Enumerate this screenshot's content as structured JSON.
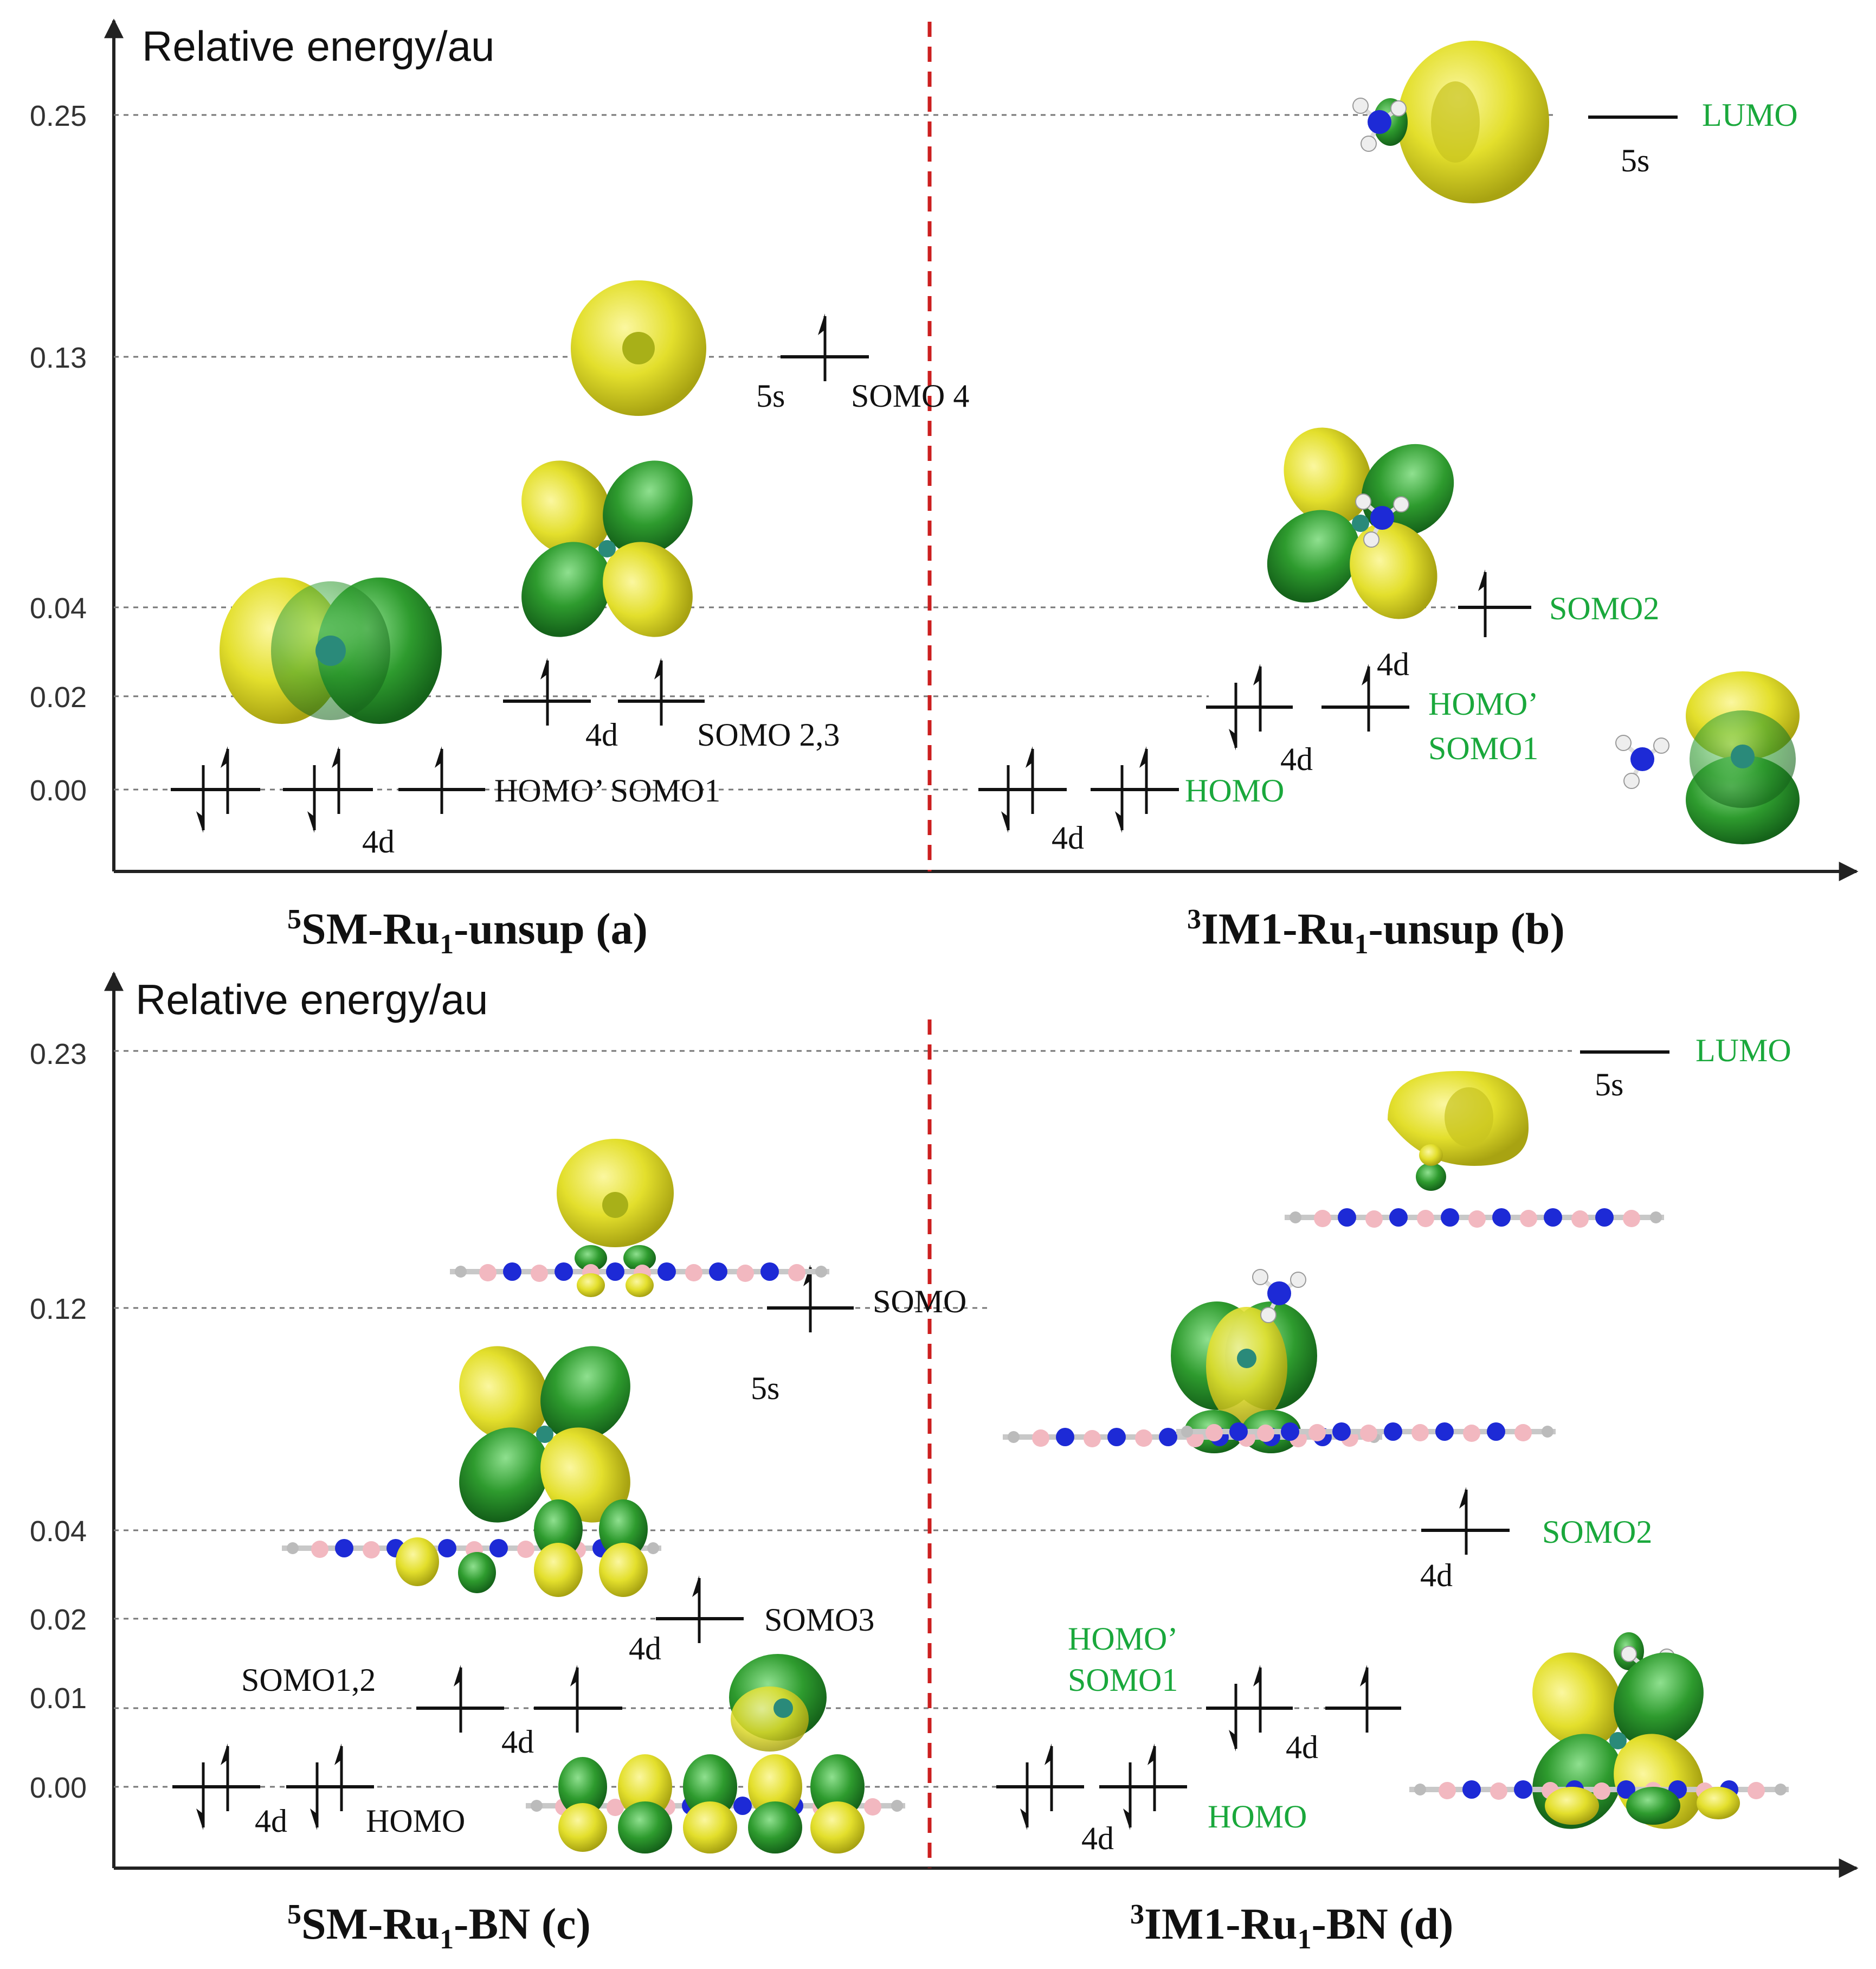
{
  "colors": {
    "divider": "#cc1f1f",
    "green_label": "#1aa83c",
    "orbital_yellow": "#e3df2c",
    "orbital_green": "#2e9b2e",
    "atom_n": "#1d2ad6",
    "atom_b": "#f2b8c0"
  },
  "panels": [
    {
      "id": "top",
      "y_axis_label": "Relative energy/au",
      "ticks": [
        "0.25",
        "0.13",
        "0.04",
        "0.02",
        "0.00"
      ],
      "left": {
        "caption_sup": "5",
        "caption_main": "SM-Ru",
        "caption_sub": "1",
        "caption_tail": "-unsup (a)",
        "labels": {
          "homo_pair": "HOMO’ SOMO1",
          "somo23": "SOMO 2,3",
          "somo4": "SOMO 4",
          "d_low": "4d",
          "d_mid": "4d",
          "s": "5s"
        }
      },
      "right": {
        "caption_sup": "3",
        "caption_main": "IM1-Ru",
        "caption_sub": "1",
        "caption_tail": "-unsup (b)",
        "labels": {
          "homo": "HOMO",
          "homo_prime": "HOMO’",
          "somo1": "SOMO1",
          "somo2": "SOMO2",
          "lumo": "LUMO",
          "d_low": "4d",
          "d_mid": "4d",
          "s": "5s"
        }
      }
    },
    {
      "id": "bottom",
      "y_axis_label": "Relative energy/au",
      "ticks": [
        "0.23",
        "0.12",
        "0.04",
        "0.02",
        "0.01",
        "0.00"
      ],
      "left": {
        "caption_sup": "5",
        "caption_main": "SM-Ru",
        "caption_sub": "1",
        "caption_tail": "-BN (c)",
        "labels": {
          "homo": "HOMO",
          "somo12": "SOMO1,2",
          "somo3": "SOMO3",
          "somo": "SOMO",
          "d_low": "4d",
          "d_mid": "4d",
          "d_upper": "4d",
          "s": "5s"
        }
      },
      "right": {
        "caption_sup": "3",
        "caption_main": "IM1-Ru",
        "caption_sub": "1",
        "caption_tail": "-BN (d)",
        "labels": {
          "homo": "HOMO",
          "homo_prime": "HOMO’",
          "somo1": "SOMO1",
          "somo2": "SOMO2",
          "lumo": "LUMO",
          "d_low": "4d",
          "d_mid": "4d",
          "d_upper": "4d",
          "s": "5s"
        }
      }
    }
  ]
}
